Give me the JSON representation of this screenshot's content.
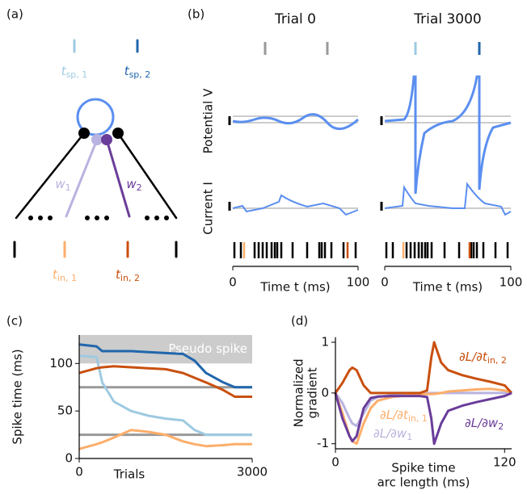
{
  "panel_a": {
    "label": "(a)",
    "t_sp_1": {
      "text": "t",
      "sub": "sp, 1"
    },
    "t_sp_2": {
      "text": "t",
      "sub": "sp, 2"
    },
    "w_1": {
      "text": "w",
      "sub": "1"
    },
    "w_2": {
      "text": "w",
      "sub": "2"
    },
    "t_in_1": {
      "text": "t",
      "sub": "in, 1"
    },
    "t_in_2": {
      "text": "t",
      "sub": "in, 2"
    }
  },
  "panel_b": {
    "label": "(b)",
    "ylabels": [
      "Potential V",
      "Current I"
    ],
    "trials": [
      {
        "title": "Trial 0",
        "xlim": [
          0,
          100
        ],
        "xticks": [
          0,
          100
        ],
        "xlabel": "Time t (ms)"
      },
      {
        "title": "Trial 3000",
        "xlim": [
          0,
          100
        ],
        "xticks": [
          0,
          100
        ],
        "xlabel": "Time t (ms)"
      }
    ]
  },
  "chart_data": [
    {
      "type": "line",
      "panel": "(c)",
      "ylabel": "Spike time (ms)",
      "xlabel": "Trials",
      "xlim": [
        0,
        3000
      ],
      "xticks": [
        0,
        3000
      ],
      "ylim": [
        0,
        130
      ],
      "yticks": [
        0,
        50,
        100
      ],
      "band": {
        "from": 100,
        "to": 130,
        "label": "Pseudo spike",
        "color": "#cccccc"
      },
      "x": [
        0,
        300,
        400,
        600,
        900,
        1200,
        1500,
        1800,
        2000,
        2200,
        2500,
        2700,
        3000
      ],
      "series": [
        {
          "color": "#999999",
          "values": [
            75,
            75,
            75,
            75,
            75,
            75,
            75,
            75,
            75,
            75,
            75,
            75,
            75
          ]
        },
        {
          "color": "#999999",
          "values": [
            25,
            25,
            25,
            25,
            25,
            25,
            25,
            25,
            25,
            25,
            25,
            25,
            25
          ]
        },
        {
          "color": "#2166ac",
          "values": [
            120,
            118,
            113,
            113,
            113,
            112,
            111,
            110,
            103,
            90,
            80,
            75,
            75
          ]
        },
        {
          "color": "#9ecae1",
          "values": [
            108,
            107,
            80,
            60,
            50,
            45,
            42,
            40,
            30,
            25,
            25,
            25,
            25
          ]
        },
        {
          "color": "#c9500f",
          "values": [
            90,
            95,
            96,
            97,
            96,
            95,
            94,
            90,
            85,
            80,
            72,
            65,
            65
          ]
        },
        {
          "color": "#fdae6b",
          "values": [
            10,
            15,
            17,
            22,
            30,
            28,
            25,
            18,
            15,
            13,
            14,
            15,
            15
          ]
        }
      ]
    },
    {
      "type": "line",
      "panel": "(d)",
      "ylabel": [
        "Normalized",
        "gradient"
      ],
      "xlabel": [
        "Spike time",
        "arc length (ms)"
      ],
      "xlim": [
        0,
        125
      ],
      "xticks": [
        0,
        120
      ],
      "ylim": [
        -1.1,
        1.1
      ],
      "yticks": [
        -1,
        0,
        1
      ],
      "x": [
        0,
        5,
        10,
        12,
        15,
        20,
        25,
        30,
        40,
        50,
        60,
        65,
        68,
        70,
        75,
        80,
        90,
        100,
        110,
        120,
        125
      ],
      "series": [
        {
          "color": "#b8b3e0",
          "label": {
            "text": "∂L/∂w",
            "sub": "1"
          },
          "values": [
            0,
            -0.2,
            -0.5,
            -0.6,
            -0.65,
            -0.4,
            -0.15,
            -0.08,
            -0.04,
            -0.02,
            -0.01,
            0,
            0,
            0,
            0,
            0,
            0,
            0,
            0,
            0,
            0
          ]
        },
        {
          "color": "#fdae6b",
          "label": {
            "text": "∂L/∂t",
            "sub": "in, 1"
          },
          "values": [
            0,
            -0.4,
            -0.85,
            -0.95,
            -1.0,
            -0.6,
            -0.3,
            -0.15,
            -0.08,
            -0.05,
            -0.03,
            -0.02,
            -0.02,
            -0.02,
            0,
            0.03,
            0.05,
            0.07,
            0.08,
            0.05,
            0
          ]
        },
        {
          "color": "#c9500f",
          "label": {
            "text": "∂L/∂t",
            "sub": "in, 2"
          },
          "values": [
            0,
            0.2,
            0.45,
            0.5,
            0.45,
            0.15,
            0,
            0,
            0,
            0,
            0,
            0.05,
            0.7,
            1.0,
            0.6,
            0.45,
            0.35,
            0.28,
            0.22,
            0.15,
            0
          ]
        },
        {
          "color": "#6a3d9a",
          "label": {
            "text": "∂L/∂w",
            "sub": "2"
          },
          "values": [
            0,
            -0.5,
            -0.85,
            -0.95,
            -0.85,
            -0.3,
            -0.1,
            -0.07,
            -0.06,
            -0.06,
            -0.06,
            -0.08,
            -0.5,
            -1.0,
            -0.6,
            -0.35,
            -0.25,
            -0.18,
            -0.12,
            -0.06,
            0
          ]
        }
      ]
    }
  ]
}
